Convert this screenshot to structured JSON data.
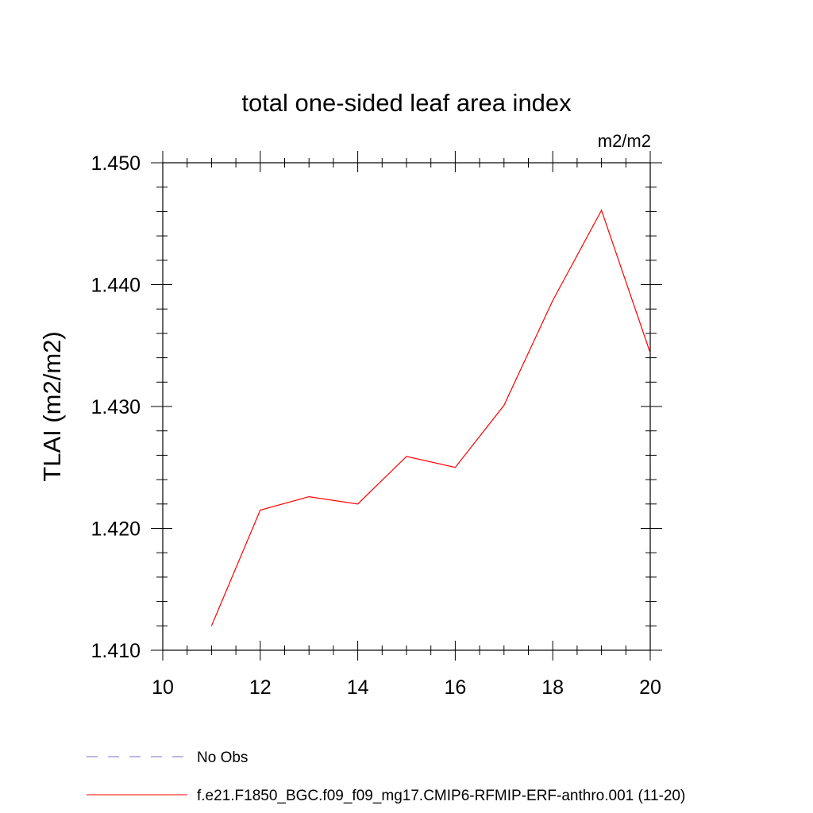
{
  "chart_data": {
    "type": "line",
    "title": "total one-sided leaf area index",
    "units_label": "m2/m2",
    "xlabel": "",
    "ylabel": "TLAI  (m2/m2)",
    "xlim": [
      10,
      20
    ],
    "ylim": [
      1.41,
      1.45
    ],
    "xticks": [
      10,
      12,
      14,
      16,
      18,
      20
    ],
    "yticks": [
      1.41,
      1.42,
      1.43,
      1.44,
      1.45
    ],
    "xtick_labels": [
      "10",
      "12",
      "14",
      "16",
      "18",
      "20"
    ],
    "ytick_labels": [
      "1.410",
      "1.420",
      "1.430",
      "1.440",
      "1.450"
    ],
    "grid": false,
    "legend_placement": "bottom",
    "series": [
      {
        "name": "f.e21.F1850_BGC.f09_f09_mg17.CMIP6-RFMIP-ERF-anthro.001 (11-20)",
        "color": "#ff0000",
        "dash": "solid",
        "x": [
          11,
          12,
          13,
          14,
          15,
          16,
          17,
          18,
          19,
          20
        ],
        "y": [
          1.412,
          1.4215,
          1.4226,
          1.422,
          1.4259,
          1.425,
          1.4301,
          1.4387,
          1.4461,
          1.4344
        ]
      }
    ],
    "legend": [
      {
        "label": "No Obs",
        "color": "#7b68c8",
        "dash": "dashed"
      },
      {
        "label": "f.e21.F1850_BGC.f09_f09_mg17.CMIP6-RFMIP-ERF-anthro.001 (11-20)",
        "color": "#ff0000",
        "dash": "solid"
      }
    ]
  }
}
